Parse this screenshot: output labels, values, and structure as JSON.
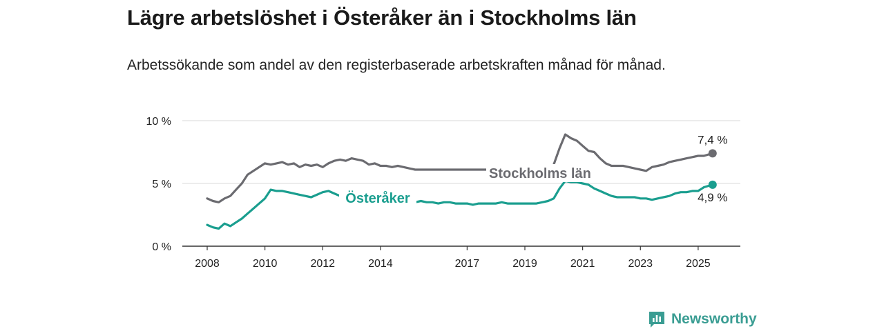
{
  "title": "Lägre arbetslöshet i Österåker än i Stockholms län",
  "subtitle": "Arbetssökande som andel av den registerbaserade arbetskraften månad för månad.",
  "brand": {
    "name": "Newsworthy",
    "icon": "newsworthy-logo-icon",
    "color": "#3a9d93"
  },
  "chart_data": {
    "type": "line",
    "title": "Lägre arbetslöshet i Österåker än i Stockholms län",
    "subtitle": "Arbetssökande som andel av den registerbaserade arbetskraften månad för månad.",
    "xlabel": "",
    "ylabel": "",
    "x_range": [
      2008,
      2025.6
    ],
    "ylim": [
      0,
      10
    ],
    "grid": true,
    "y_ticks": [
      {
        "value": 0,
        "label": "0 %"
      },
      {
        "value": 5,
        "label": "5 %"
      },
      {
        "value": 10,
        "label": "10 %"
      }
    ],
    "x_ticks": [
      {
        "value": 2008,
        "label": "2008"
      },
      {
        "value": 2010,
        "label": "2010"
      },
      {
        "value": 2012,
        "label": "2012"
      },
      {
        "value": 2014,
        "label": "2014"
      },
      {
        "value": 2017,
        "label": "2017"
      },
      {
        "value": 2019,
        "label": "2019"
      },
      {
        "value": 2021,
        "label": "2021"
      },
      {
        "value": 2023,
        "label": "2023"
      },
      {
        "value": 2025,
        "label": "2025"
      }
    ],
    "series": [
      {
        "name": "Stockholms län",
        "color": "#6b6b70",
        "end_label": "7,4 %",
        "x": [
          2008.0,
          2008.2,
          2008.4,
          2008.6,
          2008.8,
          2009.0,
          2009.2,
          2009.4,
          2009.6,
          2009.8,
          2010.0,
          2010.2,
          2010.4,
          2010.6,
          2010.8,
          2011.0,
          2011.2,
          2011.4,
          2011.6,
          2011.8,
          2012.0,
          2012.2,
          2012.4,
          2012.6,
          2012.8,
          2013.0,
          2013.2,
          2013.4,
          2013.6,
          2013.8,
          2014.0,
          2014.2,
          2014.4,
          2014.6,
          2014.8,
          2015.0,
          2015.2,
          2015.4,
          2015.6,
          2015.8,
          2016.0,
          2016.2,
          2016.4,
          2016.6,
          2016.8,
          2017.0,
          2017.2,
          2017.4,
          2017.6,
          2017.8,
          2018.0,
          2018.2,
          2018.4,
          2018.6,
          2018.8,
          2019.0,
          2019.2,
          2019.4,
          2019.6,
          2019.8,
          2020.0,
          2020.2,
          2020.4,
          2020.6,
          2020.8,
          2021.0,
          2021.2,
          2021.4,
          2021.6,
          2021.8,
          2022.0,
          2022.2,
          2022.4,
          2022.6,
          2022.8,
          2023.0,
          2023.2,
          2023.4,
          2023.6,
          2023.8,
          2024.0,
          2024.2,
          2024.4,
          2024.6,
          2024.8,
          2025.0,
          2025.2,
          2025.5
        ],
        "values": [
          3.8,
          3.6,
          3.5,
          3.8,
          4.0,
          4.5,
          5.0,
          5.7,
          6.0,
          6.3,
          6.6,
          6.5,
          6.6,
          6.7,
          6.5,
          6.6,
          6.3,
          6.5,
          6.4,
          6.5,
          6.3,
          6.6,
          6.8,
          6.9,
          6.8,
          7.0,
          6.9,
          6.8,
          6.5,
          6.6,
          6.4,
          6.4,
          6.3,
          6.4,
          6.3,
          6.2,
          6.1,
          6.1,
          6.1,
          6.1,
          6.1,
          6.1,
          6.1,
          6.1,
          6.1,
          6.1,
          6.1,
          6.1,
          6.1,
          6.1,
          6.1,
          6.1,
          6.1,
          6.1,
          6.1,
          6.1,
          6.1,
          6.1,
          6.1,
          6.1,
          6.5,
          7.8,
          8.9,
          8.6,
          8.4,
          8.0,
          7.6,
          7.5,
          7.0,
          6.6,
          6.4,
          6.4,
          6.4,
          6.3,
          6.2,
          6.1,
          6.0,
          6.3,
          6.4,
          6.5,
          6.7,
          6.8,
          6.9,
          7.0,
          7.1,
          7.2,
          7.2,
          7.4
        ]
      },
      {
        "name": "Österåker",
        "color": "#1a9e8f",
        "end_label": "4,9 %",
        "x": [
          2008.0,
          2008.2,
          2008.4,
          2008.6,
          2008.8,
          2009.0,
          2009.2,
          2009.4,
          2009.6,
          2009.8,
          2010.0,
          2010.2,
          2010.4,
          2010.6,
          2010.8,
          2011.0,
          2011.2,
          2011.4,
          2011.6,
          2011.8,
          2012.0,
          2012.2,
          2012.4,
          2012.6,
          2012.8,
          2013.0,
          2013.2,
          2013.4,
          2013.6,
          2013.8,
          2014.0,
          2014.2,
          2014.4,
          2014.6,
          2014.8,
          2015.0,
          2015.2,
          2015.4,
          2015.6,
          2015.8,
          2016.0,
          2016.2,
          2016.4,
          2016.6,
          2016.8,
          2017.0,
          2017.2,
          2017.4,
          2017.6,
          2017.8,
          2018.0,
          2018.2,
          2018.4,
          2018.6,
          2018.8,
          2019.0,
          2019.2,
          2019.4,
          2019.6,
          2019.8,
          2020.0,
          2020.2,
          2020.4,
          2020.6,
          2020.8,
          2021.0,
          2021.2,
          2021.4,
          2021.6,
          2021.8,
          2022.0,
          2022.2,
          2022.4,
          2022.6,
          2022.8,
          2023.0,
          2023.2,
          2023.4,
          2023.6,
          2023.8,
          2024.0,
          2024.2,
          2024.4,
          2024.6,
          2024.8,
          2025.0,
          2025.2,
          2025.5
        ],
        "values": [
          1.7,
          1.5,
          1.4,
          1.8,
          1.6,
          1.9,
          2.2,
          2.6,
          3.0,
          3.4,
          3.8,
          4.5,
          4.4,
          4.4,
          4.3,
          4.2,
          4.1,
          4.0,
          3.9,
          4.1,
          4.3,
          4.4,
          4.2,
          4.0,
          3.9,
          3.8,
          3.8,
          3.7,
          3.6,
          3.6,
          3.6,
          3.6,
          3.6,
          3.6,
          3.6,
          3.5,
          3.5,
          3.6,
          3.5,
          3.5,
          3.4,
          3.5,
          3.5,
          3.4,
          3.4,
          3.4,
          3.3,
          3.4,
          3.4,
          3.4,
          3.4,
          3.5,
          3.4,
          3.4,
          3.4,
          3.4,
          3.4,
          3.4,
          3.5,
          3.6,
          3.8,
          4.6,
          5.2,
          5.1,
          5.1,
          5.0,
          4.9,
          4.6,
          4.4,
          4.2,
          4.0,
          3.9,
          3.9,
          3.9,
          3.9,
          3.8,
          3.8,
          3.7,
          3.8,
          3.9,
          4.0,
          4.2,
          4.3,
          4.3,
          4.4,
          4.4,
          4.7,
          4.9
        ]
      }
    ]
  }
}
